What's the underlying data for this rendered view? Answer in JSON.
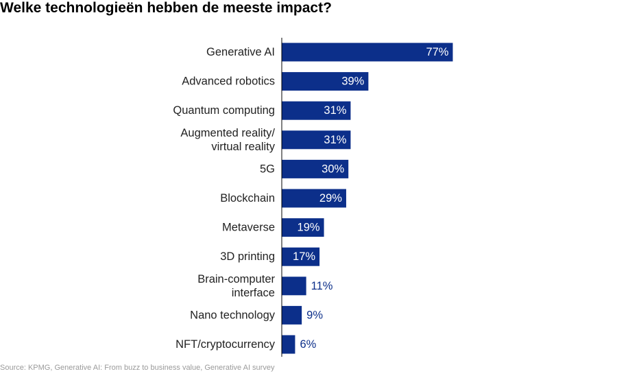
{
  "title": "Welke technologieën hebben de meeste impact?",
  "source": "Source: KPMG, Generative AI: From buzz to business value, Generative AI survey",
  "colors": {
    "bar": "#0c2f8a",
    "label_inside": "#ffffff",
    "label_outside": "#0c2f8a",
    "category_text": "#222222",
    "axis": "#000000"
  },
  "chart_data": {
    "type": "bar",
    "orientation": "horizontal",
    "title": "Welke technologieën hebben de meeste impact?",
    "categories": [
      [
        "Generative AI"
      ],
      [
        "Advanced robotics"
      ],
      [
        "Quantum computing"
      ],
      [
        "Augmented reality/",
        "virtual reality"
      ],
      [
        "5G"
      ],
      [
        "Blockchain"
      ],
      [
        "Metaverse"
      ],
      [
        "3D printing"
      ],
      [
        "Brain-computer",
        "interface"
      ],
      [
        "Nano technology"
      ],
      [
        "NFT/cryptocurrency"
      ]
    ],
    "values": [
      77,
      39,
      31,
      31,
      30,
      29,
      19,
      17,
      11,
      9,
      6
    ],
    "value_labels": [
      "77%",
      "39%",
      "31%",
      "31%",
      "30%",
      "29%",
      "19%",
      "17%",
      "11%",
      "9%",
      "6%"
    ],
    "xlim": [
      0,
      100
    ],
    "grid": false,
    "legend": "none"
  }
}
